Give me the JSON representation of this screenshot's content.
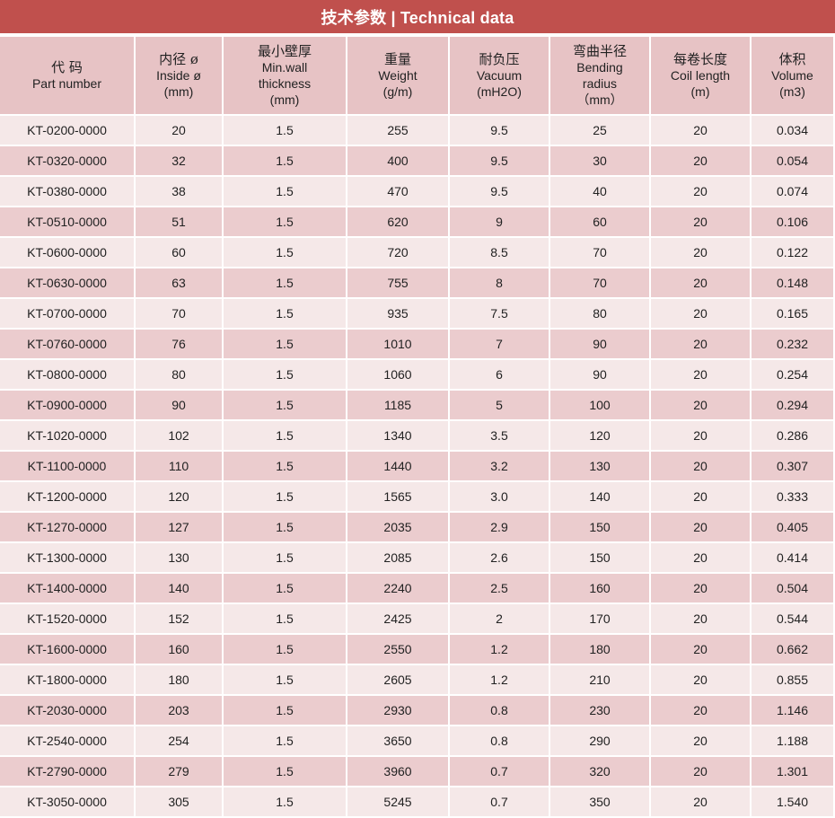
{
  "title": "技术参数 | Technical data",
  "columns": [
    {
      "cn": "代 码",
      "en": [
        "Part number"
      ]
    },
    {
      "cn": "内径 ø",
      "en": [
        "Inside ø",
        "(mm)"
      ]
    },
    {
      "cn": "最小壁厚",
      "en": [
        "Min.wall",
        "thickness",
        "(mm)"
      ]
    },
    {
      "cn": "重量",
      "en": [
        "Weight",
        "(g/m)"
      ]
    },
    {
      "cn": "耐负压",
      "en": [
        "Vacuum",
        "(mH2O)"
      ]
    },
    {
      "cn": "弯曲半径",
      "en": [
        "Bending",
        "radius",
        "（mm）"
      ]
    },
    {
      "cn": "每卷长度",
      "en": [
        "Coil length",
        "(m)"
      ]
    },
    {
      "cn": "体积",
      "en": [
        "Volume",
        "(m3)"
      ]
    }
  ],
  "rows": [
    [
      "KT-0200-0000",
      "20",
      "1.5",
      "255",
      "9.5",
      "25",
      "20",
      "0.034"
    ],
    [
      "KT-0320-0000",
      "32",
      "1.5",
      "400",
      "9.5",
      "30",
      "20",
      "0.054"
    ],
    [
      "KT-0380-0000",
      "38",
      "1.5",
      "470",
      "9.5",
      "40",
      "20",
      "0.074"
    ],
    [
      "KT-0510-0000",
      "51",
      "1.5",
      "620",
      "9",
      "60",
      "20",
      "0.106"
    ],
    [
      "KT-0600-0000",
      "60",
      "1.5",
      "720",
      "8.5",
      "70",
      "20",
      "0.122"
    ],
    [
      "KT-0630-0000",
      "63",
      "1.5",
      "755",
      "8",
      "70",
      "20",
      "0.148"
    ],
    [
      "KT-0700-0000",
      "70",
      "1.5",
      "935",
      "7.5",
      "80",
      "20",
      "0.165"
    ],
    [
      "KT-0760-0000",
      "76",
      "1.5",
      "1010",
      "7",
      "90",
      "20",
      "0.232"
    ],
    [
      "KT-0800-0000",
      "80",
      "1.5",
      "1060",
      "6",
      "90",
      "20",
      "0.254"
    ],
    [
      "KT-0900-0000",
      "90",
      "1.5",
      "1185",
      "5",
      "100",
      "20",
      "0.294"
    ],
    [
      "KT-1020-0000",
      "102",
      "1.5",
      "1340",
      "3.5",
      "120",
      "20",
      "0.286"
    ],
    [
      "KT-1100-0000",
      "110",
      "1.5",
      "1440",
      "3.2",
      "130",
      "20",
      "0.307"
    ],
    [
      "KT-1200-0000",
      "120",
      "1.5",
      "1565",
      "3.0",
      "140",
      "20",
      "0.333"
    ],
    [
      "KT-1270-0000",
      "127",
      "1.5",
      "2035",
      "2.9",
      "150",
      "20",
      "0.405"
    ],
    [
      "KT-1300-0000",
      "130",
      "1.5",
      "2085",
      "2.6",
      "150",
      "20",
      "0.414"
    ],
    [
      "KT-1400-0000",
      "140",
      "1.5",
      "2240",
      "2.5",
      "160",
      "20",
      "0.504"
    ],
    [
      "KT-1520-0000",
      "152",
      "1.5",
      "2425",
      "2",
      "170",
      "20",
      "0.544"
    ],
    [
      "KT-1600-0000",
      "160",
      "1.5",
      "2550",
      "1.2",
      "180",
      "20",
      "0.662"
    ],
    [
      "KT-1800-0000",
      "180",
      "1.5",
      "2605",
      "1.2",
      "210",
      "20",
      "0.855"
    ],
    [
      "KT-2030-0000",
      "203",
      "1.5",
      "2930",
      "0.8",
      "230",
      "20",
      "1.146"
    ],
    [
      "KT-2540-0000",
      "254",
      "1.5",
      "3650",
      "0.8",
      "290",
      "20",
      "1.188"
    ],
    [
      "KT-2790-0000",
      "279",
      "1.5",
      "3960",
      "0.7",
      "320",
      "20",
      "1.301"
    ],
    [
      "KT-3050-0000",
      "305",
      "1.5",
      "5245",
      "0.7",
      "350",
      "20",
      "1.540"
    ]
  ]
}
